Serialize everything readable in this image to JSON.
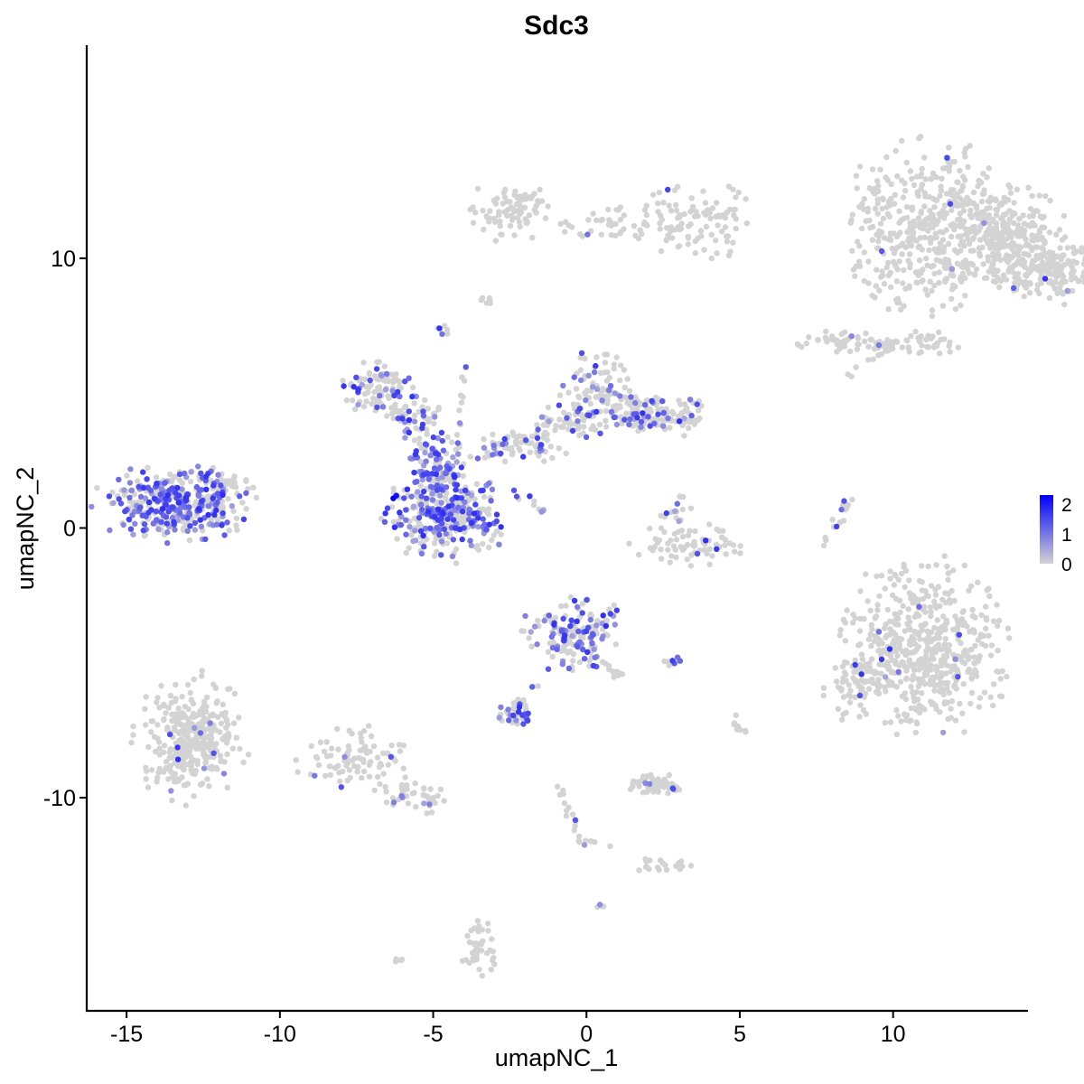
{
  "chart_data": {
    "type": "scatter",
    "title": "Sdc3",
    "xlabel": "umapNC_1",
    "ylabel": "umapNC_2",
    "xlim": [
      -16.3,
      14.4
    ],
    "ylim": [
      -17.9,
      17.9
    ],
    "x_ticks": [
      -15,
      -10,
      -5,
      0,
      5,
      10
    ],
    "y_ticks": [
      -10,
      0,
      10
    ],
    "grid": false,
    "legend": {
      "position": "right",
      "type": "colorbar",
      "range": [
        0,
        2.3
      ],
      "ticks": [
        0,
        1,
        2
      ],
      "low_color": "#d3d3d3",
      "high_color": "#0000ff"
    },
    "colors": {
      "low": "#d3d3d3",
      "high": "#0000ff",
      "axis": "#000000"
    },
    "clusters": [
      {
        "cx": 11.0,
        "cy": 11.0,
        "sx": 1.4,
        "sy": 1.6,
        "n": 420,
        "expr": 0.01,
        "rx": 1.2,
        "ry": 1.8
      },
      {
        "cx": 13.5,
        "cy": 11.0,
        "sx": 1.0,
        "sy": 1.0,
        "n": 220,
        "expr": 0.01,
        "rx": 1.0,
        "ry": 0.9
      },
      {
        "cx": 15.5,
        "cy": 9.6,
        "sx": 0.6,
        "sy": 0.8,
        "n": 120,
        "expr": 0.01,
        "rx": 0.5,
        "ry": 0.6
      },
      {
        "cx": 14.2,
        "cy": 9.8,
        "sx": 0.6,
        "sy": 0.8,
        "n": 90,
        "expr": 0.01,
        "rx": 0.5,
        "ry": 0.6
      },
      {
        "cx": -2.5,
        "cy": 11.8,
        "sx": 0.7,
        "sy": 0.5,
        "n": 80,
        "expr": 0.02,
        "rx": 0.6,
        "ry": 0.6
      },
      {
        "cx": 0.8,
        "cy": 11.3,
        "sx": 1.0,
        "sy": 0.4,
        "n": 40,
        "expr": 0.01,
        "rx": 0.8,
        "ry": 0.3
      },
      {
        "cx": 3.6,
        "cy": 11.4,
        "sx": 1.1,
        "sy": 0.7,
        "n": 100,
        "expr": 0.02,
        "rx": 0.9,
        "ry": 0.7
      },
      {
        "cx": 10.6,
        "cy": 6.8,
        "sx": 1.1,
        "sy": 0.2,
        "n": 60,
        "expr": 0.02,
        "rx": 0.8,
        "ry": 0.2
      },
      {
        "cx": 8.1,
        "cy": 6.9,
        "sx": 0.9,
        "sy": 0.2,
        "n": 45,
        "expr": 0.02,
        "rx": 0.8,
        "ry": 0.2
      },
      {
        "cx": -13.4,
        "cy": 0.9,
        "sx": 1.1,
        "sy": 0.6,
        "n": 380,
        "expr": 0.55,
        "rx": 1.3,
        "ry": 0.7
      },
      {
        "cx": -11.9,
        "cy": 1.6,
        "sx": 0.4,
        "sy": 0.5,
        "n": 30,
        "expr": 0.25,
        "rx": 0.4,
        "ry": 0.4
      },
      {
        "cx": -4.6,
        "cy": 0.4,
        "sx": 1.0,
        "sy": 0.7,
        "n": 320,
        "expr": 0.45,
        "rx": 1.0,
        "ry": 0.8
      },
      {
        "cx": -4.8,
        "cy": 2.3,
        "sx": 0.5,
        "sy": 0.6,
        "n": 80,
        "expr": 0.65,
        "rx": 0.5,
        "ry": 0.6
      },
      {
        "cx": -6.7,
        "cy": 5.2,
        "sx": 0.6,
        "sy": 0.5,
        "n": 100,
        "expr": 0.3,
        "rx": 0.6,
        "ry": 0.5
      },
      {
        "cx": -5.5,
        "cy": 4.0,
        "sx": 0.5,
        "sy": 0.4,
        "n": 40,
        "expr": 0.25,
        "rx": 0.4,
        "ry": 0.4
      },
      {
        "cx": 0.4,
        "cy": 5.0,
        "sx": 0.7,
        "sy": 0.8,
        "n": 110,
        "expr": 0.25,
        "rx": 0.6,
        "ry": 0.8
      },
      {
        "cx": 2.3,
        "cy": 4.2,
        "sx": 0.8,
        "sy": 0.4,
        "n": 130,
        "expr": 0.25,
        "rx": 0.8,
        "ry": 0.5
      },
      {
        "cx": -2.0,
        "cy": 3.0,
        "sx": 0.8,
        "sy": 0.3,
        "n": 50,
        "expr": 0.25,
        "rx": 0.7,
        "ry": 0.3
      },
      {
        "cx": -0.4,
        "cy": 4.0,
        "sx": 0.6,
        "sy": 0.3,
        "n": 40,
        "expr": 0.25,
        "rx": 0.6,
        "ry": 0.3
      },
      {
        "cx": -12.9,
        "cy": -7.8,
        "sx": 0.7,
        "sy": 0.9,
        "n": 330,
        "expr": 0.03,
        "rx": 0.9,
        "ry": 1.2
      },
      {
        "cx": -7.6,
        "cy": -8.6,
        "sx": 0.9,
        "sy": 0.6,
        "n": 90,
        "expr": 0.04,
        "rx": 0.9,
        "ry": 0.6
      },
      {
        "cx": -5.6,
        "cy": -10.0,
        "sx": 0.6,
        "sy": 0.3,
        "n": 40,
        "expr": 0.08,
        "rx": 0.6,
        "ry": 0.3
      },
      {
        "cx": -0.4,
        "cy": -3.9,
        "sx": 0.7,
        "sy": 0.6,
        "n": 170,
        "expr": 0.5,
        "rx": 0.8,
        "ry": 0.7
      },
      {
        "cx": -2.3,
        "cy": -6.9,
        "sx": 0.35,
        "sy": 0.2,
        "n": 40,
        "expr": 0.5,
        "rx": 0.3,
        "ry": 0.2
      },
      {
        "cx": 3.3,
        "cy": -0.6,
        "sx": 0.9,
        "sy": 0.35,
        "n": 70,
        "expr": 0.04,
        "rx": 0.9,
        "ry": 0.4
      },
      {
        "cx": 2.9,
        "cy": 0.6,
        "sx": 0.3,
        "sy": 0.3,
        "n": 15,
        "expr": 0.25,
        "rx": 0.3,
        "ry": 0.3
      },
      {
        "cx": 11.0,
        "cy": -4.4,
        "sx": 1.3,
        "sy": 1.4,
        "n": 550,
        "expr": 0.03,
        "rx": 1.4,
        "ry": 1.6
      },
      {
        "cx": 8.8,
        "cy": -6.0,
        "sx": 0.5,
        "sy": 0.6,
        "n": 60,
        "expr": 0.03,
        "rx": 0.5,
        "ry": 0.6
      },
      {
        "cx": 2.2,
        "cy": -9.5,
        "sx": 0.4,
        "sy": 0.2,
        "n": 40,
        "expr": 0.03,
        "rx": 0.4,
        "ry": 0.2
      },
      {
        "cx": -3.5,
        "cy": -15.6,
        "sx": 0.3,
        "sy": 0.5,
        "n": 40,
        "expr": 0.01,
        "rx": 0.3,
        "ry": 0.5
      },
      {
        "cx": 2.5,
        "cy": -12.5,
        "sx": 0.5,
        "sy": 0.2,
        "n": 20,
        "expr": 0.05,
        "rx": 0.5,
        "ry": 0.2
      },
      {
        "cx": 5.0,
        "cy": -7.3,
        "sx": 0.15,
        "sy": 0.2,
        "n": 8,
        "expr": 0.05,
        "rx": 0.15,
        "ry": 0.2
      },
      {
        "cx": -3.2,
        "cy": 8.4,
        "sx": 0.2,
        "sy": 0.1,
        "n": 6,
        "expr": 0.01,
        "rx": 0.2,
        "ry": 0.1
      },
      {
        "cx": -4.7,
        "cy": 7.4,
        "sx": 0.15,
        "sy": 0.15,
        "n": 6,
        "expr": 0.25,
        "rx": 0.15,
        "ry": 0.15
      }
    ],
    "trails": [
      {
        "x1": -3.5,
        "y1": 2.6,
        "x2": -1.1,
        "y2": 4.0,
        "n": 30,
        "expr": 0.3
      },
      {
        "x1": -4.8,
        "y1": 2.5,
        "x2": -6.3,
        "y2": 4.5,
        "n": 20,
        "expr": 0.3
      },
      {
        "x1": -4.2,
        "y1": 2.8,
        "x2": -4.0,
        "y2": 6.0,
        "n": 12,
        "expr": 0.3
      },
      {
        "x1": -2.4,
        "y1": 1.4,
        "x2": -1.3,
        "y2": 0.6,
        "n": 12,
        "expr": 0.4
      },
      {
        "x1": 0.0,
        "y1": -4.5,
        "x2": 1.2,
        "y2": -5.6,
        "n": 14,
        "expr": 0.2
      },
      {
        "x1": -1.3,
        "y1": -5.2,
        "x2": -2.2,
        "y2": -6.6,
        "n": 10,
        "expr": 0.4
      },
      {
        "x1": -0.9,
        "y1": -9.5,
        "x2": -0.2,
        "y2": -11.4,
        "n": 14,
        "expr": 0.2
      },
      {
        "x1": -0.2,
        "y1": -11.6,
        "x2": 0.8,
        "y2": -11.8,
        "n": 8,
        "expr": 0.1
      },
      {
        "x1": 8.6,
        "y1": 1.0,
        "x2": 7.7,
        "y2": -0.7,
        "n": 16,
        "expr": 0.08
      },
      {
        "x1": 2.0,
        "y1": -9.2,
        "x2": 3.0,
        "y2": -9.7,
        "n": 20,
        "expr": 0.02
      },
      {
        "x1": 0.4,
        "y1": -14.0,
        "x2": 0.6,
        "y2": -14.0,
        "n": 4,
        "expr": 0.6
      },
      {
        "x1": 2.6,
        "y1": -5.0,
        "x2": 3.1,
        "y2": -4.9,
        "n": 8,
        "expr": 0.5
      },
      {
        "x1": 9.5,
        "y1": 6.4,
        "x2": 8.6,
        "y2": 5.6,
        "n": 6,
        "expr": 0.01
      },
      {
        "x1": -6.3,
        "y1": -16.1,
        "x2": -6.0,
        "y2": -15.9,
        "n": 4,
        "expr": 0.0
      }
    ]
  }
}
